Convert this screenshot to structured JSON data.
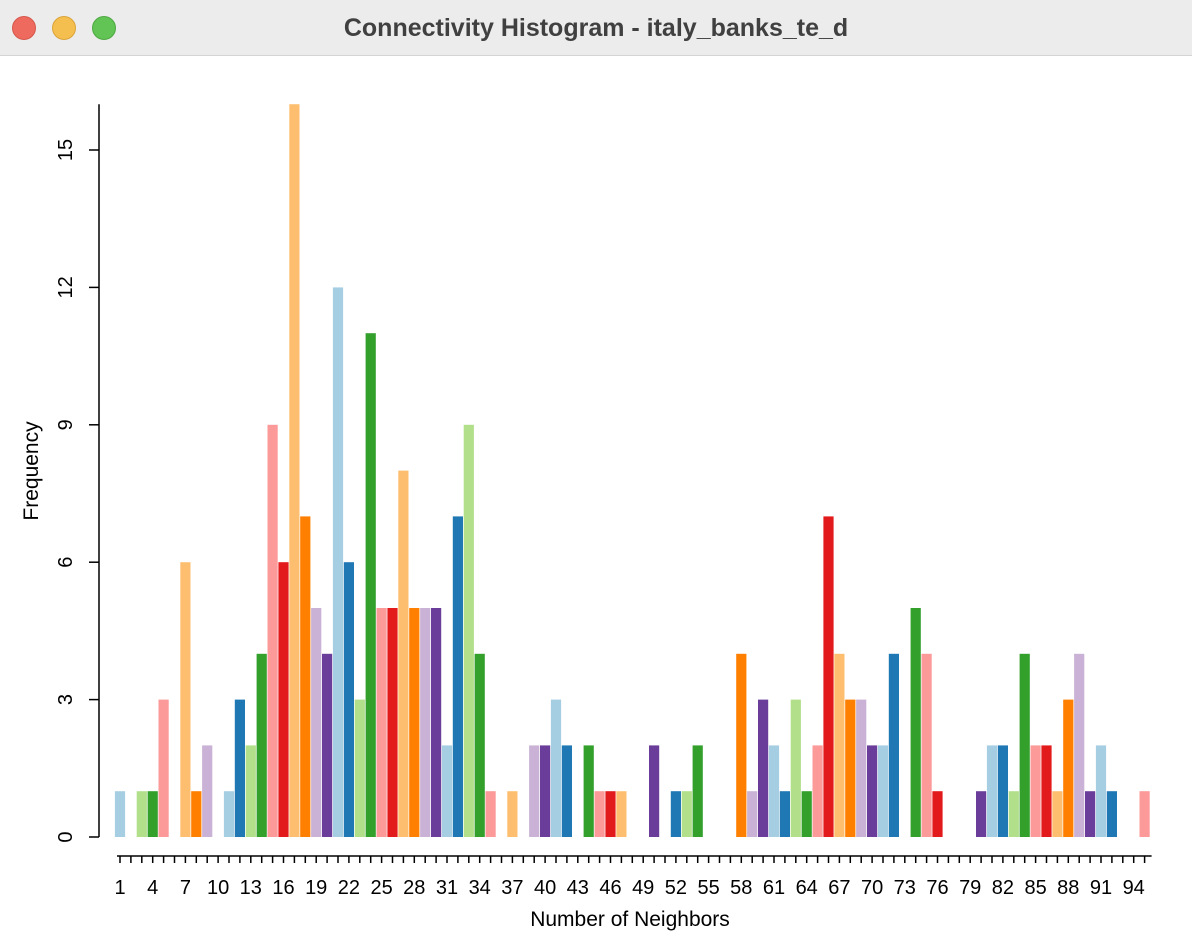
{
  "window": {
    "title": "Connectivity Histogram - italy_banks_te_d"
  },
  "chart_data": {
    "type": "bar",
    "xlabel": "Number of Neighbors",
    "ylabel": "Frequency",
    "ylim": [
      0,
      16
    ],
    "yticks": [
      0,
      3,
      6,
      9,
      12,
      15
    ],
    "xtick_labels": [
      "1",
      "4",
      "7",
      "10",
      "13",
      "16",
      "19",
      "22",
      "25",
      "28",
      "31",
      "34",
      "37",
      "40",
      "43",
      "46",
      "49",
      "52",
      "55",
      "58",
      "61",
      "64",
      "67",
      "70",
      "73",
      "76",
      "79",
      "82",
      "85",
      "88",
      "91",
      "94"
    ],
    "x": [
      1,
      2,
      3,
      4,
      5,
      6,
      7,
      8,
      9,
      10,
      11,
      12,
      13,
      14,
      15,
      16,
      17,
      18,
      19,
      20,
      21,
      22,
      23,
      24,
      25,
      26,
      27,
      28,
      29,
      30,
      31,
      32,
      33,
      34,
      35,
      36,
      37,
      38,
      39,
      40,
      41,
      42,
      43,
      44,
      45,
      46,
      47,
      48,
      49,
      50,
      51,
      52,
      53,
      54,
      55,
      56,
      57,
      58,
      59,
      60,
      61,
      62,
      63,
      64,
      65,
      66,
      67,
      68,
      69,
      70,
      71,
      72,
      73,
      74,
      75,
      76,
      77,
      78,
      79,
      80,
      81,
      82,
      83,
      84,
      85,
      86,
      87,
      88,
      89,
      90,
      91,
      92,
      93,
      94,
      95
    ],
    "values": [
      1,
      0,
      1,
      1,
      3,
      0,
      6,
      1,
      2,
      0,
      1,
      3,
      2,
      4,
      9,
      6,
      16,
      7,
      5,
      4,
      12,
      6,
      3,
      11,
      5,
      5,
      8,
      5,
      5,
      5,
      2,
      7,
      9,
      4,
      1,
      0,
      1,
      0,
      2,
      2,
      3,
      2,
      0,
      2,
      1,
      1,
      1,
      0,
      0,
      2,
      0,
      1,
      1,
      2,
      0,
      0,
      0,
      4,
      1,
      3,
      2,
      1,
      3,
      1,
      2,
      7,
      4,
      3,
      3,
      2,
      2,
      4,
      0,
      5,
      4,
      1,
      0,
      0,
      0,
      1,
      2,
      2,
      1,
      4,
      2,
      2,
      1,
      3,
      4,
      1,
      2,
      1,
      0,
      0,
      1
    ],
    "palette": [
      "#a6cee3",
      "#1f78b4",
      "#b2df8a",
      "#33a02c",
      "#fb9a99",
      "#e31a1c",
      "#fdbf6f",
      "#ff7f00",
      "#cab2d6",
      "#6a3d9a"
    ],
    "legend": "none",
    "grid": false
  }
}
